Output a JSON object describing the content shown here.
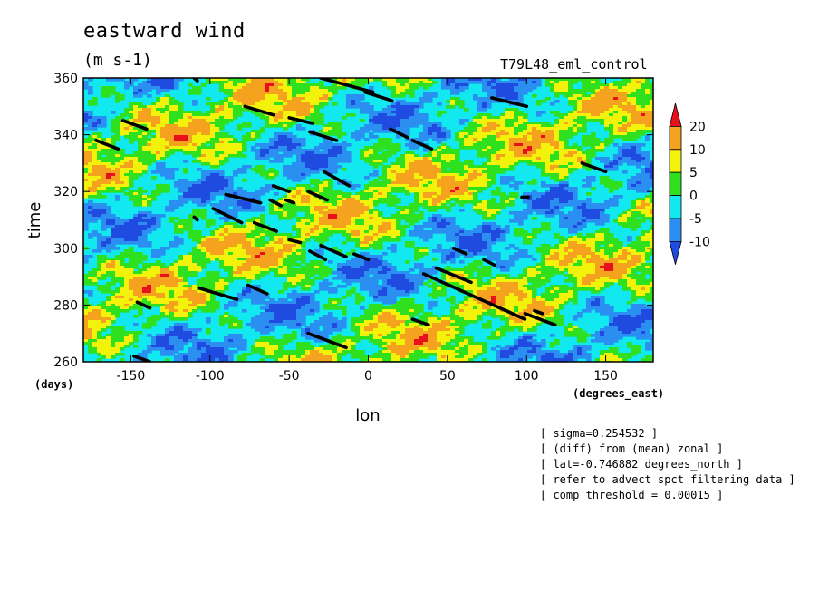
{
  "header": {
    "title": "eastward wind",
    "units": "(m s-1)",
    "run": "T79L48_eml_control"
  },
  "chart_data": {
    "type": "heatmap",
    "title": "eastward wind",
    "subtitle": "(m s-1)",
    "xlabel": "lon",
    "ylabel": "time",
    "x_unit_label": "(degrees_east)",
    "y_unit_label": "(days)",
    "xlim": [
      -180,
      180
    ],
    "ylim": [
      260,
      360
    ],
    "x_ticks": [
      -150,
      -100,
      -50,
      0,
      50,
      100,
      150
    ],
    "y_ticks": [
      260,
      280,
      300,
      320,
      340,
      360
    ],
    "grid": false,
    "colorbar": {
      "labels": [
        "20",
        "10",
        "5",
        "0",
        "-5",
        "-10"
      ],
      "levels": [
        20,
        10,
        5,
        0,
        -5,
        -10
      ],
      "colors": {
        "gt20": "#e8101a",
        "10_20": "#f5a21e",
        "5_10": "#f2f20a",
        "0_5": "#2ee01e",
        "m5_0": "#12e8f0",
        "m10_m5": "#2a8ff0",
        "lt_m10": "#1f4be0"
      }
    },
    "overlay_segments": [
      {
        "lon": [
          -110,
          -108
        ],
        "time": [
          360,
          359
        ]
      },
      {
        "lon": [
          -30,
          3
        ],
        "time": [
          360,
          355
        ]
      },
      {
        "lon": [
          -2,
          15
        ],
        "time": [
          355,
          352
        ]
      },
      {
        "lon": [
          78,
          100
        ],
        "time": [
          353,
          350
        ]
      },
      {
        "lon": [
          -78,
          -60
        ],
        "time": [
          350,
          347
        ]
      },
      {
        "lon": [
          -50,
          -35
        ],
        "time": [
          346,
          344
        ]
      },
      {
        "lon": [
          -155,
          -140
        ],
        "time": [
          345,
          342
        ]
      },
      {
        "lon": [
          -37,
          -20
        ],
        "time": [
          341,
          338
        ]
      },
      {
        "lon": [
          14,
          25
        ],
        "time": [
          342,
          339
        ]
      },
      {
        "lon": [
          28,
          40
        ],
        "time": [
          338,
          335
        ]
      },
      {
        "lon": [
          -172,
          -158
        ],
        "time": [
          338,
          335
        ]
      },
      {
        "lon": [
          135,
          150
        ],
        "time": [
          330,
          327
        ]
      },
      {
        "lon": [
          -28,
          -12
        ],
        "time": [
          327,
          322
        ]
      },
      {
        "lon": [
          -60,
          -50
        ],
        "time": [
          322,
          320
        ]
      },
      {
        "lon": [
          -38,
          -26
        ],
        "time": [
          320,
          317
        ]
      },
      {
        "lon": [
          -90,
          -68
        ],
        "time": [
          319,
          316
        ]
      },
      {
        "lon": [
          -62,
          -55
        ],
        "time": [
          317,
          315
        ]
      },
      {
        "lon": [
          -52,
          -47
        ],
        "time": [
          317,
          316
        ]
      },
      {
        "lon": [
          97,
          101
        ],
        "time": [
          318,
          318
        ]
      },
      {
        "lon": [
          -98,
          -80
        ],
        "time": [
          314,
          309
        ]
      },
      {
        "lon": [
          -110,
          -108
        ],
        "time": [
          311,
          310
        ]
      },
      {
        "lon": [
          -72,
          -58
        ],
        "time": [
          309,
          306
        ]
      },
      {
        "lon": [
          -50,
          -43
        ],
        "time": [
          303,
          302
        ]
      },
      {
        "lon": [
          -30,
          -14
        ],
        "time": [
          301,
          297
        ]
      },
      {
        "lon": [
          -37,
          -27
        ],
        "time": [
          299,
          296
        ]
      },
      {
        "lon": [
          -9,
          0
        ],
        "time": [
          298,
          296
        ]
      },
      {
        "lon": [
          54,
          62
        ],
        "time": [
          300,
          298
        ]
      },
      {
        "lon": [
          73,
          80
        ],
        "time": [
          296,
          294
        ]
      },
      {
        "lon": [
          43,
          65
        ],
        "time": [
          293,
          288
        ]
      },
      {
        "lon": [
          35,
          99
        ],
        "time": [
          291,
          275
        ]
      },
      {
        "lon": [
          -107,
          -83
        ],
        "time": [
          286,
          282
        ]
      },
      {
        "lon": [
          -76,
          -64
        ],
        "time": [
          287,
          284
        ]
      },
      {
        "lon": [
          -146,
          -138
        ],
        "time": [
          281,
          279
        ]
      },
      {
        "lon": [
          99,
          118
        ],
        "time": [
          277,
          273
        ]
      },
      {
        "lon": [
          105,
          110
        ],
        "time": [
          278,
          277
        ]
      },
      {
        "lon": [
          28,
          38
        ],
        "time": [
          275,
          273
        ]
      },
      {
        "lon": [
          -38,
          -14
        ],
        "time": [
          270,
          265
        ]
      },
      {
        "lon": [
          -148,
          -138
        ],
        "time": [
          262,
          260
        ]
      }
    ]
  },
  "notes": [
    "[ sigma=0.254532 ]",
    "[ (diff) from (mean) zonal ]",
    "[ lat=-0.746882 degrees_north ]",
    "[ refer to advect spct filtering data ]",
    "[ comp threshold = 0.00015 ]"
  ]
}
